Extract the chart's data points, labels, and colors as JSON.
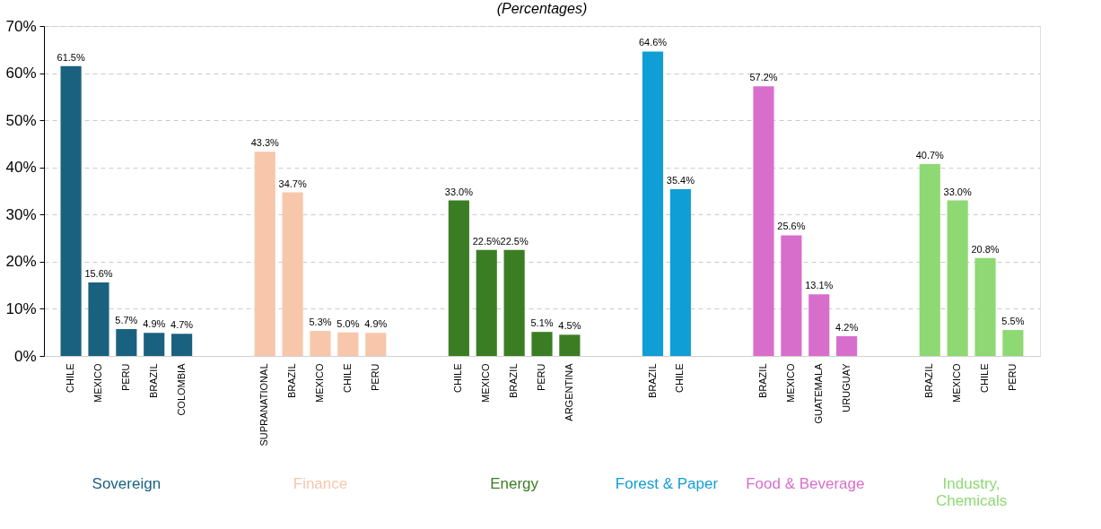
{
  "chart_data": {
    "type": "bar",
    "subtitle": "(Percentages)",
    "categories": [
      "CHILE",
      "MEXICO",
      "PERU",
      "BRAZIL",
      "COLOMBIA",
      null,
      null,
      "SUPRANATIONAL",
      "BRAZIL",
      "MEXICO",
      "CHILE",
      "PERU",
      null,
      null,
      "CHILE",
      "MEXICO",
      "BRAZIL",
      "PERU",
      "ARGENTINA",
      null,
      null,
      "BRAZIL",
      "CHILE",
      null,
      null,
      "BRAZIL",
      "MEXICO",
      "GUATEMALA",
      "URUGUAY",
      null,
      null,
      "BRAZIL",
      "MEXICO",
      "CHILE",
      "PERU"
    ],
    "series": [
      {
        "name": "Sovereign",
        "color": "#1a6180",
        "values": [
          61.5,
          15.6,
          5.7,
          4.9,
          4.7,
          null,
          null,
          null,
          null,
          null,
          null,
          null,
          null,
          null,
          null,
          null,
          null,
          null,
          null,
          null,
          null,
          null,
          null,
          null,
          null,
          null,
          null,
          null,
          null,
          null,
          null,
          null,
          null,
          null,
          null
        ],
        "value_labels": [
          "61.5%",
          "15.6%",
          "5.7%",
          "4.9%",
          "4.7%",
          null,
          null,
          null,
          null,
          null,
          null,
          null,
          null,
          null,
          null,
          null,
          null,
          null,
          null,
          null,
          null,
          null,
          null,
          null,
          null,
          null,
          null,
          null,
          null,
          null,
          null,
          null,
          null,
          null,
          null
        ]
      },
      {
        "name": "Finance",
        "color": "#f7c6ab",
        "values": [
          null,
          null,
          null,
          null,
          null,
          null,
          null,
          43.3,
          34.7,
          5.3,
          5.0,
          4.9,
          null,
          null,
          null,
          null,
          null,
          null,
          null,
          null,
          null,
          null,
          null,
          null,
          null,
          null,
          null,
          null,
          null,
          null,
          null,
          null,
          null,
          null,
          null
        ],
        "value_labels": [
          null,
          null,
          null,
          null,
          null,
          null,
          null,
          "43.3%",
          "34.7%",
          "5.3%",
          "5.0%",
          "4.9%",
          null,
          null,
          null,
          null,
          null,
          null,
          null,
          null,
          null,
          null,
          null,
          null,
          null,
          null,
          null,
          null,
          null,
          null,
          null,
          null,
          null,
          null,
          null
        ]
      },
      {
        "name": "Energy",
        "color": "#3b7d23",
        "values": [
          null,
          null,
          null,
          null,
          null,
          null,
          null,
          null,
          null,
          null,
          null,
          null,
          null,
          null,
          33.0,
          22.5,
          22.5,
          5.1,
          4.5,
          null,
          null,
          null,
          null,
          null,
          null,
          null,
          null,
          null,
          null,
          null,
          null,
          null,
          null,
          null,
          null
        ],
        "value_labels": [
          null,
          null,
          null,
          null,
          null,
          null,
          null,
          null,
          null,
          null,
          null,
          null,
          null,
          null,
          "33.0%",
          "22.5%",
          "22.5%",
          "5.1%",
          "4.5%",
          null,
          null,
          null,
          null,
          null,
          null,
          null,
          null,
          null,
          null,
          null,
          null,
          null,
          null,
          null,
          null
        ]
      },
      {
        "name": "Forest & Paper",
        "color": "#0f9ed5",
        "values": [
          null,
          null,
          null,
          null,
          null,
          null,
          null,
          null,
          null,
          null,
          null,
          null,
          null,
          null,
          null,
          null,
          null,
          null,
          null,
          null,
          null,
          64.6,
          35.4,
          null,
          null,
          null,
          null,
          null,
          null,
          null,
          null,
          null,
          null,
          null,
          null
        ],
        "value_labels": [
          null,
          null,
          null,
          null,
          null,
          null,
          null,
          null,
          null,
          null,
          null,
          null,
          null,
          null,
          null,
          null,
          null,
          null,
          null,
          null,
          null,
          "64.6%",
          "35.4%",
          null,
          null,
          null,
          null,
          null,
          null,
          null,
          null,
          null,
          null,
          null,
          null
        ]
      },
      {
        "name": "Food & Beverage",
        "color": "#d86ecc",
        "values": [
          null,
          null,
          null,
          null,
          null,
          null,
          null,
          null,
          null,
          null,
          null,
          null,
          null,
          null,
          null,
          null,
          null,
          null,
          null,
          null,
          null,
          null,
          null,
          null,
          null,
          57.2,
          25.6,
          13.1,
          4.2,
          null,
          null,
          null,
          null,
          null,
          null
        ],
        "value_labels": [
          null,
          null,
          null,
          null,
          null,
          null,
          null,
          null,
          null,
          null,
          null,
          null,
          null,
          null,
          null,
          null,
          null,
          null,
          null,
          null,
          null,
          null,
          null,
          null,
          null,
          "57.2%",
          "25.6%",
          "13.1%",
          "4.2%",
          null,
          null,
          null,
          null,
          null,
          null
        ]
      },
      {
        "name": "Industry, Chemicals",
        "color": "#8ed973",
        "values": [
          null,
          null,
          null,
          null,
          null,
          null,
          null,
          null,
          null,
          null,
          null,
          null,
          null,
          null,
          null,
          null,
          null,
          null,
          null,
          null,
          null,
          null,
          null,
          null,
          null,
          null,
          null,
          null,
          null,
          null,
          null,
          40.7,
          33.0,
          20.8,
          5.5
        ],
        "value_labels": [
          null,
          null,
          null,
          null,
          null,
          null,
          null,
          null,
          null,
          null,
          null,
          null,
          null,
          null,
          null,
          null,
          null,
          null,
          null,
          null,
          null,
          null,
          null,
          null,
          null,
          null,
          null,
          null,
          null,
          null,
          null,
          "40.7%",
          "33.0%",
          "20.8%",
          "5.5%"
        ]
      }
    ],
    "ylim": [
      0,
      70
    ],
    "yticks": [
      {
        "value": 0,
        "label": "0%"
      },
      {
        "value": 10,
        "label": "10%"
      },
      {
        "value": 20,
        "label": "20%"
      },
      {
        "value": 30,
        "label": "30%"
      },
      {
        "value": 40,
        "label": "40%"
      },
      {
        "value": 50,
        "label": "50%"
      },
      {
        "value": 60,
        "label": "60%"
      },
      {
        "value": 70,
        "label": "70%"
      }
    ],
    "grid": "y",
    "legend": false
  }
}
